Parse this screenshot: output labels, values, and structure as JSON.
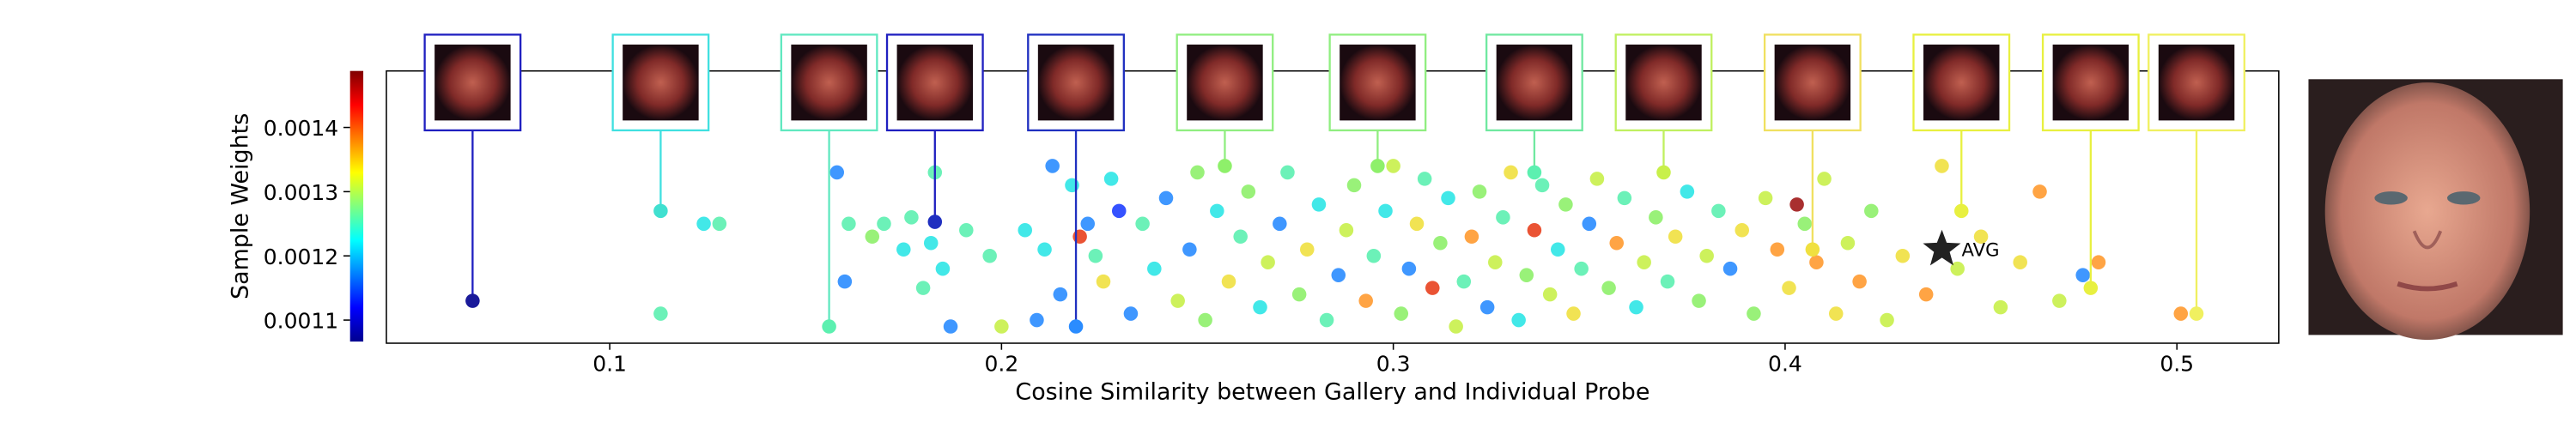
{
  "chart_data": {
    "type": "scatter",
    "xlabel": "Cosine Similarity between Gallery and Individual Probe",
    "ylabel": "Sample Weights",
    "xlim": [
      0.043,
      0.526
    ],
    "ylim": [
      0.001064,
      0.001488
    ],
    "xticks": [
      0.1,
      0.2,
      0.3,
      0.4,
      0.5
    ],
    "yticks": [
      0.0011,
      0.0012,
      0.0013,
      0.0014
    ],
    "colormap": "jet",
    "x": [
      0.113,
      0.124,
      0.128,
      0.158,
      0.16,
      0.161,
      0.167,
      0.17,
      0.175,
      0.177,
      0.18,
      0.182,
      0.183,
      0.185,
      0.187,
      0.191,
      0.197,
      0.2,
      0.206,
      0.209,
      0.211,
      0.213,
      0.215,
      0.218,
      0.22,
      0.222,
      0.224,
      0.226,
      0.228,
      0.23,
      0.233,
      0.236,
      0.239,
      0.242,
      0.245,
      0.248,
      0.25,
      0.252,
      0.255,
      0.258,
      0.261,
      0.263,
      0.266,
      0.268,
      0.271,
      0.273,
      0.276,
      0.278,
      0.281,
      0.283,
      0.286,
      0.288,
      0.29,
      0.293,
      0.295,
      0.298,
      0.3,
      0.302,
      0.304,
      0.306,
      0.308,
      0.31,
      0.312,
      0.314,
      0.316,
      0.318,
      0.32,
      0.322,
      0.324,
      0.326,
      0.328,
      0.33,
      0.332,
      0.334,
      0.336,
      0.338,
      0.34,
      0.342,
      0.344,
      0.346,
      0.348,
      0.35,
      0.352,
      0.355,
      0.357,
      0.359,
      0.362,
      0.364,
      0.367,
      0.37,
      0.372,
      0.375,
      0.378,
      0.38,
      0.383,
      0.386,
      0.389,
      0.392,
      0.395,
      0.398,
      0.401,
      0.403,
      0.405,
      0.408,
      0.41,
      0.413,
      0.416,
      0.419,
      0.422,
      0.426,
      0.43,
      0.436,
      0.44,
      0.444,
      0.45,
      0.455,
      0.46,
      0.465,
      0.47,
      0.476,
      0.48,
      0.501
    ],
    "values": [
      0.00111,
      0.00125,
      0.00125,
      0.00133,
      0.00116,
      0.00125,
      0.00123,
      0.00125,
      0.00121,
      0.00126,
      0.00115,
      0.00122,
      0.00133,
      0.00118,
      0.00109,
      0.00124,
      0.0012,
      0.00109,
      0.00124,
      0.0011,
      0.00121,
      0.00134,
      0.00114,
      0.00131,
      0.00123,
      0.00125,
      0.0012,
      0.00116,
      0.00132,
      0.00127,
      0.00111,
      0.00125,
      0.00118,
      0.00129,
      0.00113,
      0.00121,
      0.00133,
      0.0011,
      0.00127,
      0.00116,
      0.00123,
      0.0013,
      0.00112,
      0.00119,
      0.00125,
      0.00133,
      0.00114,
      0.00121,
      0.00128,
      0.0011,
      0.00117,
      0.00124,
      0.00131,
      0.00113,
      0.0012,
      0.00127,
      0.00134,
      0.00111,
      0.00118,
      0.00125,
      0.00132,
      0.00115,
      0.00122,
      0.00129,
      0.00109,
      0.00116,
      0.00123,
      0.0013,
      0.00112,
      0.00119,
      0.00126,
      0.00133,
      0.0011,
      0.00117,
      0.00124,
      0.00131,
      0.00114,
      0.00121,
      0.00128,
      0.00111,
      0.00118,
      0.00125,
      0.00132,
      0.00115,
      0.00122,
      0.00129,
      0.00112,
      0.00119,
      0.00126,
      0.00116,
      0.00123,
      0.0013,
      0.00113,
      0.0012,
      0.00127,
      0.00118,
      0.00124,
      0.00111,
      0.00129,
      0.00121,
      0.00115,
      0.00128,
      0.00125,
      0.00119,
      0.00132,
      0.00111,
      0.00122,
      0.00116,
      0.00127,
      0.0011,
      0.0012,
      0.00114,
      0.00134,
      0.00118,
      0.00123,
      0.00112,
      0.00119,
      0.0013,
      0.00113,
      0.00117,
      0.00119,
      0.00111
    ],
    "colors": [
      "#5cf0b0",
      "#2ee6e6",
      "#5cf0b0",
      "#2a8cff",
      "#2a8cff",
      "#5cf0b0",
      "#8ef06a",
      "#5cf0b0",
      "#2ee6e6",
      "#5cf0b0",
      "#5cf0b0",
      "#2ee6e6",
      "#5cf0b0",
      "#2ee6e6",
      "#2a8cff",
      "#5cf0b0",
      "#5cf0b0",
      "#c8f04a",
      "#2ee6e6",
      "#2a8cff",
      "#2ee6e6",
      "#2a8cff",
      "#2a8cff",
      "#2ee6e6",
      "#e8401e",
      "#2a8cff",
      "#5cf0b0",
      "#f0e040",
      "#2ee6e6",
      "#1f3fff",
      "#2a8cff",
      "#5cf0b0",
      "#2ee6e6",
      "#2a8cff",
      "#c8f04a",
      "#2a8cff",
      "#8ef06a",
      "#8ef06a",
      "#2ee6e6",
      "#f0e040",
      "#5cf0b0",
      "#8ef06a",
      "#2ee6e6",
      "#c8f04a",
      "#2a8cff",
      "#5cf0b0",
      "#8ef06a",
      "#f0e040",
      "#2ee6e6",
      "#5cf0b0",
      "#2a8cff",
      "#c8f04a",
      "#8ef06a",
      "#ff9a30",
      "#5cf0b0",
      "#2ee6e6",
      "#c8f04a",
      "#8ef06a",
      "#2a8cff",
      "#f0e040",
      "#5cf0b0",
      "#e8401e",
      "#8ef06a",
      "#2ee6e6",
      "#c8f04a",
      "#5cf0b0",
      "#ff9a30",
      "#8ef06a",
      "#2a8cff",
      "#c8f04a",
      "#5cf0b0",
      "#f0e040",
      "#2ee6e6",
      "#8ef06a",
      "#e8401e",
      "#5cf0b0",
      "#c8f04a",
      "#2ee6e6",
      "#8ef06a",
      "#f0e040",
      "#5cf0b0",
      "#2a8cff",
      "#c8f04a",
      "#8ef06a",
      "#ff9a30",
      "#5cf0b0",
      "#2ee6e6",
      "#c8f04a",
      "#8ef06a",
      "#5cf0b0",
      "#f0e040",
      "#2ee6e6",
      "#8ef06a",
      "#c8f04a",
      "#5cf0b0",
      "#2a8cff",
      "#f0e040",
      "#8ef06a",
      "#c8f04a",
      "#ff9a30",
      "#f0e040",
      "#a01818",
      "#8ef06a",
      "#ff9a30",
      "#c8f04a",
      "#f0e040",
      "#c8f04a",
      "#ff9a30",
      "#8ef06a",
      "#c8f04a",
      "#f0e040",
      "#ff9a30",
      "#f0e040",
      "#c8f04a",
      "#f0e040",
      "#c8f04a",
      "#f0e040",
      "#ff9a30",
      "#c8f04a",
      "#2a8cff",
      "#ff9a30",
      "#ff9a30"
    ],
    "thumbnails": [
      {
        "x": 0.065,
        "y": 0.00113,
        "box_color": "#2020c0",
        "point_color": "#1a1a9a"
      },
      {
        "x": 0.113,
        "y": 0.00127,
        "box_color": "#40e0e0",
        "point_color": "#40e0d0"
      },
      {
        "x": 0.156,
        "y": 0.00109,
        "box_color": "#60e8c0",
        "point_color": "#5cf0b0"
      },
      {
        "x": 0.183,
        "y": 0.001253,
        "box_color": "#2020c0",
        "point_color": "#2030c0"
      },
      {
        "x": 0.219,
        "y": 0.00109,
        "box_color": "#2030c0",
        "point_color": "#2a8cff"
      },
      {
        "x": 0.257,
        "y": 0.00134,
        "box_color": "#90ee80",
        "point_color": "#8ef06a"
      },
      {
        "x": 0.296,
        "y": 0.00134,
        "box_color": "#90ee80",
        "point_color": "#8ef06a"
      },
      {
        "x": 0.336,
        "y": 0.00133,
        "box_color": "#70e8a0",
        "point_color": "#5cf0b0"
      },
      {
        "x": 0.369,
        "y": 0.00133,
        "box_color": "#c0f060",
        "point_color": "#c8f04a"
      },
      {
        "x": 0.407,
        "y": 0.00121,
        "box_color": "#f0e060",
        "point_color": "#f0e040"
      },
      {
        "x": 0.445,
        "y": 0.00127,
        "box_color": "#e8f040",
        "point_color": "#e8f040"
      },
      {
        "x": 0.478,
        "y": 0.00115,
        "box_color": "#e8f040",
        "point_color": "#e8f040"
      },
      {
        "x": 0.505,
        "y": 0.00111,
        "box_color": "#f0f060",
        "point_color": "#f0f060"
      }
    ],
    "annotation": {
      "label": "AVG",
      "x": 0.44,
      "y": 0.00121
    }
  }
}
